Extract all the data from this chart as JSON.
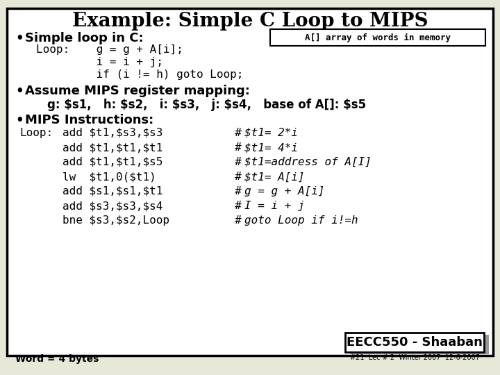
{
  "title": "Example: Simple C Loop to MIPS",
  "bg_color": "#e8e8d8",
  "border_color": "#000000",
  "title_color": "#000000",
  "bullet1_header": "Simple loop in C:",
  "annotation_box": "A[] array of words in memory",
  "bullet2_header": "Assume MIPS register mapping:",
  "bullet2_detail": "g: $s1,   h: $s2,   i: $s3,   j: $s4,   base of A[]: $s5",
  "bullet3_header": "MIPS Instructions:",
  "mips_loop_label": "Loop:",
  "mips_instructions": [
    "add $t1,$s3,$s3",
    "add $t1,$t1,$t1",
    "add $t1,$t1,$s5",
    "lw  $t1,0($t1)",
    "add $s1,$s1,$t1",
    "add $s3,$s3,$s4",
    "bne $s3,$s2,Loop"
  ],
  "mips_comments_hash": [
    "$t1= 2*i",
    "$t1= 4*i",
    "$t1=address of A[I]",
    "$t1= A[i]",
    "g = g + A[i]",
    "I = i + j",
    "goto Loop if i!=h"
  ],
  "footer_label": "EECC550 - Shaaban",
  "footer_sub": "#21  Lec # 2  Winter 2007  12-6-2007",
  "word_label": "Word = 4 bytes",
  "code_line1": "Loop:    g = g + A[i];",
  "code_line2": "         i = i + j;",
  "code_line3": "         if (i != h) goto Loop;"
}
